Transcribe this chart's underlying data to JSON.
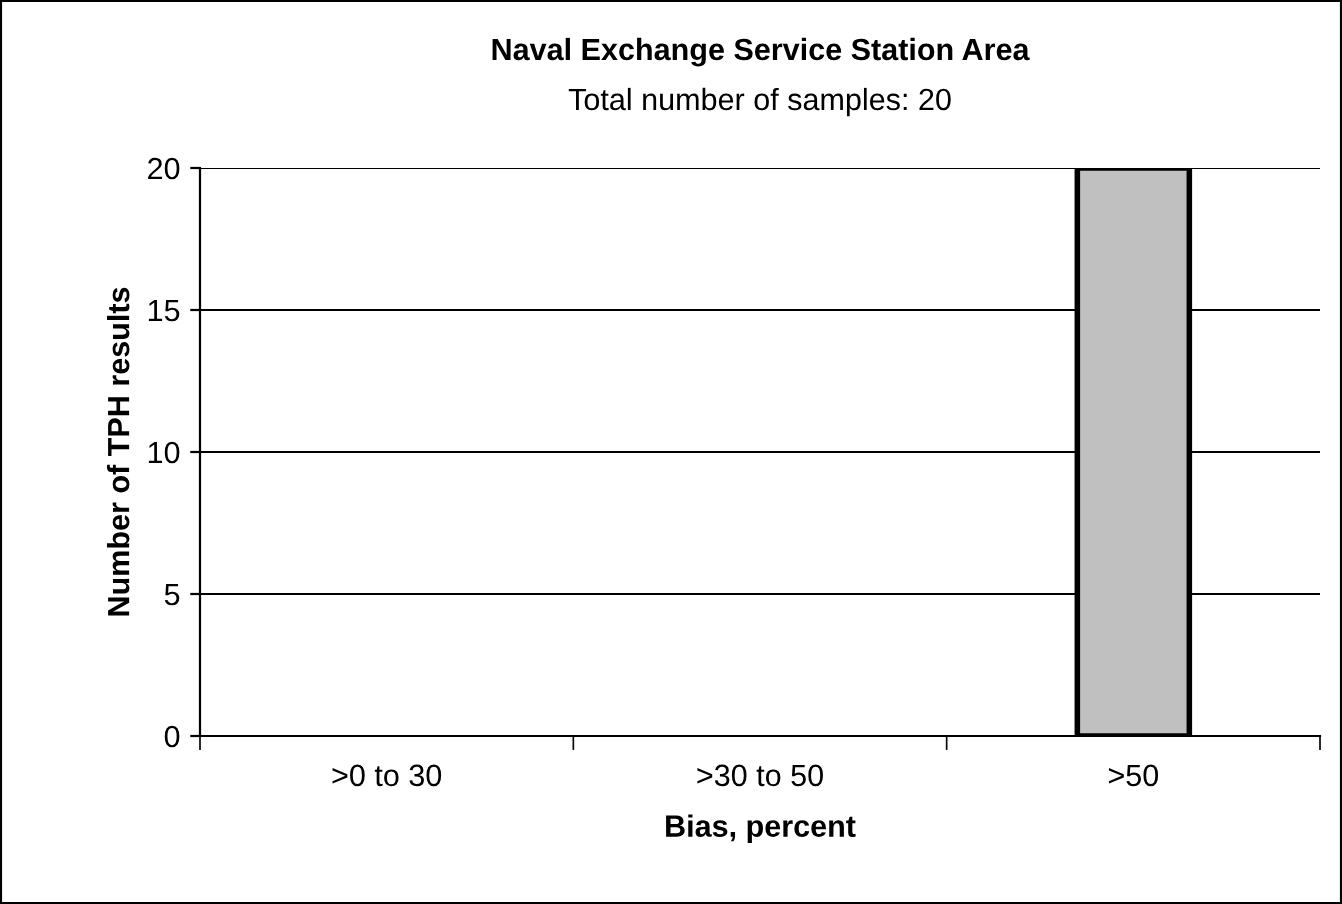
{
  "chart_data": {
    "type": "bar",
    "title": "Naval Exchange Service Station Area",
    "subtitle": "Total number of samples: 20",
    "categories": [
      ">0 to 30",
      ">30 to 50",
      ">50"
    ],
    "values": [
      0,
      0,
      20
    ],
    "color": "#c0c0c0",
    "xlabel": "Bias, percent",
    "ylabel": "Number of TPH results",
    "ylim": [
      0,
      20
    ],
    "yticks": [
      0,
      5,
      10,
      15,
      20
    ],
    "grid": "y"
  }
}
